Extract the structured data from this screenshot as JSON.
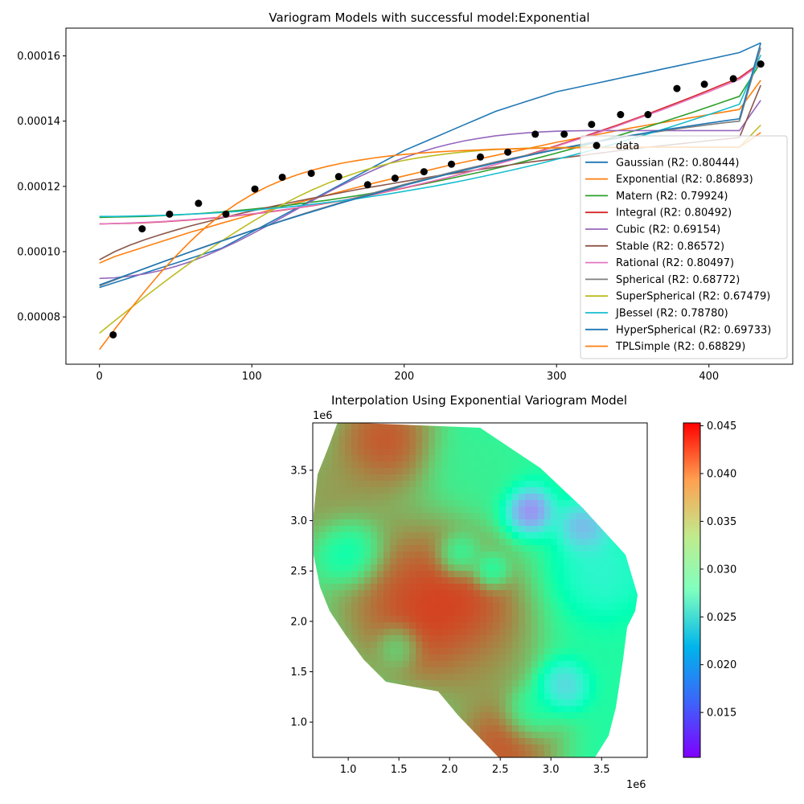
{
  "chart_data": [
    {
      "type": "scatter+line",
      "title": "Variogram Models with successful model:Exponential",
      "xlabel": "",
      "ylabel": "",
      "xlim": [
        -22,
        455
      ],
      "ylim": [
        6.55e-05,
        0.0001685
      ],
      "x_ticks": [
        0,
        100,
        200,
        300,
        400
      ],
      "y_ticks": [
        8e-05,
        0.0001,
        0.00012,
        0.00014,
        0.00016
      ],
      "x_tick_labels": [
        "0",
        "100",
        "200",
        "300",
        "400"
      ],
      "y_tick_labels": [
        "0.00008",
        "0.00010",
        "0.00012",
        "0.00014",
        "0.00016"
      ],
      "legend_position": "lower-right",
      "data_label": "data",
      "data_points": {
        "x": [
          9,
          28,
          46,
          65,
          83,
          102,
          120,
          139,
          157,
          176,
          194,
          213,
          231,
          250,
          268,
          286,
          305,
          323,
          342,
          360,
          379,
          397,
          416,
          434
        ],
        "y": [
          7.45e-05,
          0.000107,
          0.0001115,
          0.0001148,
          0.0001115,
          0.0001192,
          0.0001228,
          0.000124,
          0.000123,
          0.0001205,
          0.0001225,
          0.0001245,
          0.0001268,
          0.000129,
          0.0001305,
          0.000136,
          0.000136,
          0.000139,
          0.000142,
          0.000142,
          0.00015,
          0.0001513,
          0.000153,
          0.0001575
        ]
      },
      "x": [
        0,
        10,
        20,
        30,
        40,
        50,
        60,
        70,
        80,
        90,
        100,
        110,
        120,
        130,
        140,
        150,
        160,
        170,
        180,
        190,
        200,
        210,
        220,
        230,
        240,
        250,
        260,
        270,
        280,
        290,
        300,
        310,
        320,
        330,
        340,
        350,
        360,
        370,
        380,
        390,
        400,
        410,
        420,
        434
      ],
      "series": [
        {
          "name": "Gaussian (R2: 0.80444)",
          "color": "#1f77b4",
          "values": [
            8.9e-05,
            9.05e-05,
            9.2e-05,
            9.35e-05,
            9.5e-05,
            9.65e-05,
            9.8e-05,
            9.95e-05,
            0.000101,
            0.0001035,
            0.000106,
            0.0001085,
            0.000111,
            0.0001135,
            0.000116,
            0.0001185,
            0.000121,
            0.0001235,
            0.000126,
            0.0001285,
            0.000131,
            0.000133,
            0.000135,
            0.000137,
            0.000139,
            0.000141,
            0.000143,
            0.0001445,
            0.000146,
            0.0001475,
            0.000149,
            0.00015,
            0.000151,
            0.000152,
            0.000153,
            0.000154,
            0.000155,
            0.000156,
            0.000157,
            0.000158,
            0.000159,
            0.00016,
            0.000161,
            0.000164
          ]
        },
        {
          "name": "Exponential (R2: 0.86893)",
          "color": "#ff7f0e",
          "values": [
            9.65e-05,
            9.85e-05,
            0.0001,
            0.0001015,
            0.000103,
            0.0001045,
            0.000106,
            0.0001073,
            0.0001087,
            0.00011,
            0.0001113,
            0.0001125,
            0.0001138,
            0.000115,
            0.0001162,
            0.0001174,
            0.0001186,
            0.0001198,
            0.000121,
            0.0001221,
            0.0001232,
            0.0001243,
            0.0001254,
            0.0001265,
            0.0001275,
            0.0001285,
            0.0001295,
            0.0001305,
            0.0001315,
            0.0001325,
            0.0001335,
            0.0001344,
            0.0001353,
            0.0001362,
            0.0001371,
            0.000138,
            0.0001388,
            0.0001396,
            0.0001404,
            0.0001412,
            0.000142,
            0.0001428,
            0.0001436,
            0.0001525
          ]
        },
        {
          "name": "Matern (R2: 0.79924)",
          "color": "#2ca02c",
          "values": [
            0.0001105,
            0.0001106,
            0.0001107,
            0.0001108,
            0.000111,
            0.0001112,
            0.0001115,
            0.0001118,
            0.0001122,
            0.0001126,
            0.000113,
            0.0001135,
            0.000114,
            0.0001146,
            0.0001152,
            0.0001158,
            0.0001165,
            0.0001172,
            0.000118,
            0.0001188,
            0.0001196,
            0.0001205,
            0.0001214,
            0.0001224,
            0.0001234,
            0.0001244,
            0.0001255,
            0.0001266,
            0.0001278,
            0.000129,
            0.0001302,
            0.0001315,
            0.0001328,
            0.0001341,
            0.0001355,
            0.0001369,
            0.0001383,
            0.0001398,
            0.0001413,
            0.0001428,
            0.0001444,
            0.000146,
            0.0001476,
            0.000158
          ]
        },
        {
          "name": "Integral (R2: 0.80492)",
          "color": "#d62728",
          "values": [
            0.0001085,
            0.0001086,
            0.0001087,
            0.0001089,
            0.0001091,
            0.0001094,
            0.0001097,
            0.0001101,
            0.0001105,
            0.000111,
            0.0001115,
            0.0001121,
            0.0001127,
            0.0001134,
            0.0001141,
            0.0001149,
            0.0001157,
            0.0001166,
            0.0001175,
            0.0001185,
            0.0001195,
            0.0001206,
            0.0001217,
            0.0001229,
            0.0001241,
            0.0001254,
            0.0001267,
            0.0001281,
            0.0001295,
            0.000131,
            0.0001325,
            0.000134,
            0.0001356,
            0.0001372,
            0.0001388,
            0.0001405,
            0.0001422,
            0.000144,
            0.0001458,
            0.0001476,
            0.0001495,
            0.0001514,
            0.0001533,
            0.000158
          ]
        },
        {
          "name": "Cubic (R2: 0.69154)",
          "color": "#9467bd",
          "values": [
            9.18e-05,
            9.2e-05,
            9.25e-05,
            9.32e-05,
            9.42e-05,
            9.55e-05,
            9.7e-05,
            9.88e-05,
            0.0001008,
            0.000103,
            0.0001054,
            0.0001079,
            0.0001105,
            0.0001131,
            0.0001157,
            0.0001182,
            0.0001206,
            0.0001229,
            0.000125,
            0.000127,
            0.0001288,
            0.0001304,
            0.0001318,
            0.000133,
            0.000134,
            0.0001348,
            0.0001355,
            0.000136,
            0.0001364,
            0.0001367,
            0.0001369,
            0.000137,
            0.0001371,
            0.0001371,
            0.0001371,
            0.0001371,
            0.0001371,
            0.0001371,
            0.0001371,
            0.0001371,
            0.0001371,
            0.0001371,
            0.0001371,
            0.0001464
          ]
        },
        {
          "name": "Stable (R2: 0.86572)",
          "color": "#8c564b",
          "values": [
            9.75e-05,
            0.0001,
            0.000102,
            0.0001037,
            0.0001052,
            0.0001066,
            0.0001079,
            0.0001091,
            0.0001103,
            0.0001114,
            0.0001125,
            0.0001135,
            0.0001145,
            0.0001155,
            0.0001164,
            0.0001173,
            0.0001182,
            0.0001191,
            0.0001199,
            0.0001207,
            0.0001215,
            0.0001223,
            0.0001231,
            0.0001238,
            0.0001245,
            0.0001252,
            0.0001259,
            0.0001266,
            0.0001273,
            0.0001279,
            0.0001285,
            0.0001291,
            0.0001297,
            0.0001303,
            0.0001309,
            0.0001315,
            0.000132,
            0.0001325,
            0.000133,
            0.0001335,
            0.000134,
            0.0001345,
            0.000135,
            0.000151
          ]
        },
        {
          "name": "Rational (R2: 0.80497)",
          "color": "#e377c2",
          "values": [
            0.0001085,
            0.0001086,
            0.0001088,
            0.000109,
            0.0001092,
            0.0001095,
            0.0001098,
            0.0001102,
            0.0001106,
            0.0001111,
            0.0001116,
            0.0001122,
            0.0001128,
            0.0001135,
            0.0001142,
            0.000115,
            0.0001158,
            0.0001167,
            0.0001176,
            0.0001186,
            0.0001196,
            0.0001207,
            0.0001218,
            0.0001229,
            0.0001241,
            0.0001254,
            0.0001267,
            0.000128,
            0.0001294,
            0.0001308,
            0.0001323,
            0.0001338,
            0.0001353,
            0.0001369,
            0.0001385,
            0.0001402,
            0.0001419,
            0.0001436,
            0.0001454,
            0.0001472,
            0.000149,
            0.0001509,
            0.0001528,
            0.0001575
          ]
        },
        {
          "name": "Spherical (R2: 0.68772)",
          "color": "#7f7f7f",
          "values": [
            8.95e-05,
            9.13e-05,
            9.31e-05,
            9.49e-05,
            9.66e-05,
            9.83e-05,
            0.0001,
            0.0001017,
            0.0001033,
            0.0001049,
            0.0001065,
            0.000108,
            0.0001095,
            0.000111,
            0.0001125,
            0.0001139,
            0.0001153,
            0.0001167,
            0.000118,
            0.0001193,
            0.0001206,
            0.0001218,
            0.000123,
            0.0001242,
            0.0001253,
            0.0001264,
            0.0001275,
            0.0001285,
            0.0001295,
            0.0001305,
            0.0001314,
            0.0001323,
            0.0001332,
            0.000134,
            0.0001348,
            0.0001356,
            0.0001363,
            0.000137,
            0.0001377,
            0.0001383,
            0.0001389,
            0.0001395,
            0.00014,
            0.0001625
          ]
        },
        {
          "name": "SuperSpherical (R2: 0.67479)",
          "color": "#bcbd22",
          "values": [
            7.5e-05,
            7.88e-05,
            8.25e-05,
            8.62e-05,
            8.98e-05,
            9.33e-05,
            9.67e-05,
            0.0001,
            0.0001032,
            0.0001062,
            0.0001091,
            0.0001118,
            0.0001144,
            0.0001168,
            0.000119,
            0.000121,
            0.0001228,
            0.0001244,
            0.0001258,
            0.000127,
            0.000128,
            0.0001288,
            0.0001295,
            0.0001301,
            0.0001306,
            0.000131,
            0.0001313,
            0.0001315,
            0.0001317,
            0.0001318,
            0.0001319,
            0.000132,
            0.000132,
            0.000132,
            0.000132,
            0.000132,
            0.000132,
            0.000132,
            0.000132,
            0.000132,
            0.000132,
            0.000132,
            0.000132,
            0.0001388
          ]
        },
        {
          "name": "JBessel (R2: 0.78780)",
          "color": "#17becf",
          "values": [
            0.0001108,
            0.0001108,
            0.0001109,
            0.000111,
            0.0001111,
            0.0001113,
            0.0001115,
            0.0001117,
            0.000112,
            0.0001123,
            0.0001127,
            0.0001131,
            0.0001135,
            0.000114,
            0.0001145,
            0.0001151,
            0.0001157,
            0.0001163,
            0.000117,
            0.0001177,
            0.0001185,
            0.0001193,
            0.0001201,
            0.000121,
            0.0001219,
            0.0001229,
            0.0001239,
            0.0001249,
            0.000126,
            0.0001271,
            0.0001283,
            0.0001295,
            0.0001307,
            0.000132,
            0.0001333,
            0.0001347,
            0.0001361,
            0.0001375,
            0.000139,
            0.0001405,
            0.000142,
            0.0001436,
            0.0001452,
            0.0001603
          ]
        },
        {
          "name": "HyperSpherical (R2: 0.69733)",
          "color": "#1f77b4",
          "values": [
            8.98e-05,
            9.15e-05,
            9.32e-05,
            9.49e-05,
            9.66e-05,
            9.83e-05,
            0.0001,
            0.0001016,
            0.0001032,
            0.0001048,
            0.0001064,
            0.0001079,
            0.0001094,
            0.0001109,
            0.0001123,
            0.0001137,
            0.0001151,
            0.0001164,
            0.0001177,
            0.000119,
            0.0001203,
            0.0001215,
            0.0001227,
            0.0001239,
            0.000125,
            0.0001261,
            0.0001272,
            0.0001283,
            0.0001293,
            0.0001303,
            0.0001313,
            0.0001322,
            0.0001331,
            0.000134,
            0.0001349,
            0.0001357,
            0.0001365,
            0.0001373,
            0.000138,
            0.0001387,
            0.0001394,
            0.0001401,
            0.0001407,
            0.000164
          ]
        },
        {
          "name": "TPLSimple (R2: 0.68829)",
          "color": "#ff7f0e",
          "values": [
            7e-05,
            7.62e-05,
            8.22e-05,
            8.8e-05,
            9.35e-05,
            9.86e-05,
            0.0001033,
            0.0001076,
            0.0001114,
            0.0001147,
            0.0001175,
            0.0001199,
            0.0001219,
            0.0001236,
            0.000125,
            0.0001262,
            0.0001272,
            0.000128,
            0.0001287,
            0.0001293,
            0.0001298,
            0.0001302,
            0.0001305,
            0.0001308,
            0.000131,
            0.0001312,
            0.0001314,
            0.0001315,
            0.0001316,
            0.0001317,
            0.0001318,
            0.0001318,
            0.0001319,
            0.0001319,
            0.0001319,
            0.000132,
            0.000132,
            0.000132,
            0.000132,
            0.000132,
            0.000132,
            0.000132,
            0.000132,
            0.0001365
          ]
        }
      ]
    },
    {
      "type": "heatmap",
      "title": "Interpolation Using Exponential Variogram Model",
      "xlabel": "",
      "ylabel": "",
      "x_offset_label": "1e6",
      "y_offset_label": "1e6",
      "xlim": [
        0.65,
        3.95
      ],
      "ylim": [
        0.65,
        3.97
      ],
      "x_ticks": [
        1.0,
        1.5,
        2.0,
        2.5,
        3.0,
        3.5
      ],
      "y_ticks": [
        1.0,
        1.5,
        2.0,
        2.5,
        3.0,
        3.5
      ],
      "x_tick_labels": [
        "1.0",
        "1.5",
        "2.0",
        "2.5",
        "3.0",
        "3.5"
      ],
      "y_tick_labels": [
        "1.0",
        "1.5",
        "2.0",
        "2.5",
        "3.0",
        "3.5"
      ],
      "colormap": "rainbow",
      "colorbar_range": [
        0.0103,
        0.0453
      ],
      "colorbar_ticks": [
        0.015,
        0.02,
        0.025,
        0.03,
        0.035,
        0.04,
        0.045
      ],
      "colorbar_tick_labels": [
        "0.015",
        "0.020",
        "0.025",
        "0.030",
        "0.035",
        "0.040",
        "0.045"
      ],
      "field": {
        "base": 0.03,
        "blobs": [
          {
            "x": 1.7,
            "y": 2.2,
            "value": 0.045,
            "spread": 0.5
          },
          {
            "x": 2.1,
            "y": 2.0,
            "value": 0.045,
            "spread": 0.35
          },
          {
            "x": 1.35,
            "y": 3.8,
            "value": 0.045,
            "spread": 0.3
          },
          {
            "x": 0.8,
            "y": 3.2,
            "value": 0.04,
            "spread": 0.35
          },
          {
            "x": 2.55,
            "y": 0.8,
            "value": 0.045,
            "spread": 0.3
          },
          {
            "x": 2.3,
            "y": 1.6,
            "value": 0.038,
            "spread": 0.3
          },
          {
            "x": 1.0,
            "y": 2.7,
            "value": 0.022,
            "spread": 0.18
          },
          {
            "x": 2.78,
            "y": 3.1,
            "value": 0.012,
            "spread": 0.14
          },
          {
            "x": 3.35,
            "y": 2.95,
            "value": 0.014,
            "spread": 0.15
          },
          {
            "x": 3.1,
            "y": 1.35,
            "value": 0.018,
            "spread": 0.14
          },
          {
            "x": 2.1,
            "y": 2.65,
            "value": 0.025,
            "spread": 0.12
          },
          {
            "x": 3.5,
            "y": 2.5,
            "value": 0.023,
            "spread": 0.25
          },
          {
            "x": 3.7,
            "y": 3.4,
            "value": 0.03,
            "spread": 0.3
          },
          {
            "x": 2.4,
            "y": 2.5,
            "value": 0.024,
            "spread": 0.1
          },
          {
            "x": 1.5,
            "y": 1.75,
            "value": 0.03,
            "spread": 0.12
          },
          {
            "x": 2.8,
            "y": 1.1,
            "value": 0.025,
            "spread": 0.15
          },
          {
            "x": 2.3,
            "y": 3.55,
            "value": 0.032,
            "spread": 0.25
          }
        ]
      }
    }
  ]
}
